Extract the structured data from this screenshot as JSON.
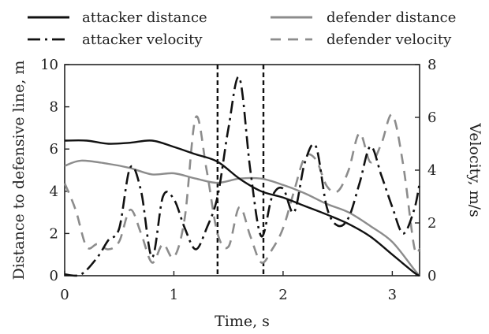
{
  "chart_data": {
    "type": "line",
    "xlabel": "Time, s",
    "ylabel_left": "Distance to defensive line, m",
    "ylabel_right": "Velocity, m/s",
    "xlim": [
      0,
      3.25
    ],
    "ylim_left": [
      0,
      10
    ],
    "ylim_right": [
      0,
      8
    ],
    "x_ticks": [
      "0",
      "1",
      "2",
      "3"
    ],
    "y_left_ticks": [
      "0",
      "2",
      "4",
      "6",
      "8",
      "10"
    ],
    "y_right_ticks": [
      "0",
      "2",
      "4",
      "6",
      "8"
    ],
    "grid": false,
    "legend_position": "top",
    "vertical_markers": [
      1.4,
      1.82
    ],
    "series": [
      {
        "name": "attacker distance",
        "axis": "left",
        "style": "solid",
        "color": "#111111",
        "x": [
          0,
          0.2,
          0.4,
          0.6,
          0.8,
          1.0,
          1.2,
          1.4,
          1.6,
          1.8,
          2.0,
          2.2,
          2.4,
          2.6,
          2.8,
          3.0,
          3.2,
          3.25
        ],
        "y": [
          6.4,
          6.4,
          6.25,
          6.3,
          6.4,
          6.1,
          5.75,
          5.4,
          4.6,
          4.0,
          3.7,
          3.3,
          2.9,
          2.45,
          1.85,
          1.0,
          0.15,
          0.0
        ]
      },
      {
        "name": "defender distance",
        "axis": "left",
        "style": "solid",
        "color": "#8c8c8c",
        "x": [
          0,
          0.15,
          0.4,
          0.6,
          0.8,
          1.0,
          1.2,
          1.4,
          1.6,
          1.8,
          2.0,
          2.2,
          2.4,
          2.6,
          2.8,
          3.0,
          3.2,
          3.25
        ],
        "y": [
          5.2,
          5.45,
          5.3,
          5.1,
          4.8,
          4.85,
          4.6,
          4.4,
          4.6,
          4.6,
          4.3,
          3.9,
          3.4,
          3.0,
          2.35,
          1.6,
          0.3,
          0.0
        ]
      },
      {
        "name": "attacker velocity",
        "axis": "right",
        "style": "dashdot",
        "color": "#111111",
        "x": [
          0,
          0.15,
          0.3,
          0.4,
          0.5,
          0.6,
          0.7,
          0.8,
          0.9,
          1.0,
          1.1,
          1.2,
          1.3,
          1.4,
          1.5,
          1.6,
          1.7,
          1.8,
          1.9,
          2.0,
          2.1,
          2.2,
          2.3,
          2.4,
          2.5,
          2.6,
          2.7,
          2.8,
          2.9,
          3.0,
          3.1,
          3.2,
          3.25
        ],
        "y": [
          0.05,
          0.05,
          0.7,
          1.35,
          1.8,
          4.1,
          3.2,
          0.7,
          3.0,
          2.9,
          1.8,
          1.0,
          1.8,
          3.0,
          5.6,
          7.5,
          4.0,
          1.5,
          3.0,
          3.3,
          2.4,
          4.3,
          4.9,
          2.6,
          1.9,
          2.2,
          3.5,
          4.9,
          3.8,
          2.6,
          1.6,
          2.5,
          3.5
        ]
      },
      {
        "name": "defender velocity",
        "axis": "right",
        "style": "dashed",
        "color": "#8c8c8c",
        "x": [
          0,
          0.1,
          0.2,
          0.3,
          0.4,
          0.5,
          0.6,
          0.7,
          0.8,
          0.9,
          1.0,
          1.1,
          1.2,
          1.3,
          1.4,
          1.5,
          1.6,
          1.7,
          1.8,
          1.9,
          2.0,
          2.1,
          2.2,
          2.3,
          2.4,
          2.5,
          2.6,
          2.7,
          2.8,
          2.9,
          3.0,
          3.1,
          3.2,
          3.25
        ],
        "y": [
          3.5,
          2.5,
          1.1,
          1.2,
          1.0,
          1.3,
          2.5,
          1.6,
          0.5,
          1.2,
          0.7,
          2.2,
          6.0,
          4.0,
          1.6,
          1.1,
          2.6,
          1.5,
          0.5,
          1.0,
          1.8,
          3.2,
          4.5,
          4.4,
          3.4,
          3.2,
          4.0,
          5.4,
          4.3,
          5.0,
          6.1,
          4.2,
          1.1,
          1.0
        ]
      }
    ]
  }
}
